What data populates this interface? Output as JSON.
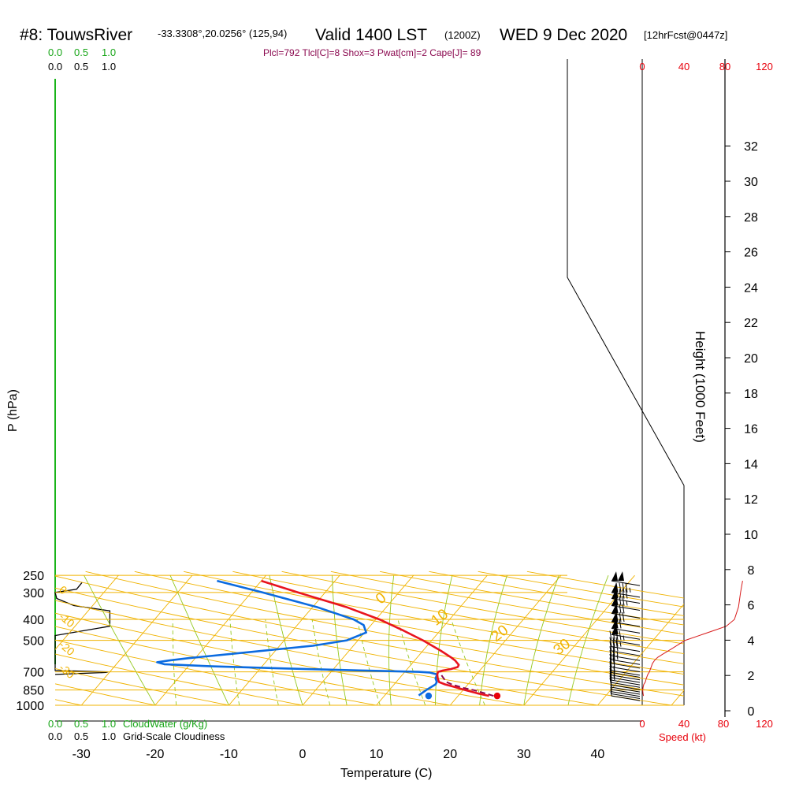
{
  "header": {
    "station": "#8: TouwsRiver",
    "coords": "-33.3308°,20.0256° (125,94)",
    "valid": "Valid 1400 LST",
    "utc": "(1200Z)",
    "date": "WED 9 Dec 2020",
    "forecast": "[12hrFcst@0447z]",
    "params": "Plcl=792 Tlcl[C]=8 Shox=3 Pwat[cm]=2 Cape[J]= 89"
  },
  "left_scales": {
    "top_green": [
      "0.0",
      "0.5",
      "1.0"
    ],
    "top_black": [
      "0.0",
      "0.5",
      "1.0"
    ],
    "bottom_green": [
      "0.0",
      "0.5",
      "1.0"
    ],
    "bottom_green_label": "CloudWater (g/Kg)",
    "bottom_black": [
      "0.0",
      "0.5",
      "1.0"
    ],
    "bottom_black_label": "Grid-Scale Cloudiness"
  },
  "wind_scale": {
    "top": [
      "0",
      "40",
      "80",
      "120"
    ],
    "bottom": [
      "0",
      "40",
      "80",
      "120"
    ],
    "label": "Speed (kt)"
  },
  "chart_data": {
    "type": "line",
    "subtype": "skew-t log-p sounding",
    "xlabel": "Temperature (C)",
    "ylabel": "P (hPa)",
    "y2label": "Height (1000 Feet)",
    "x_ticks": [
      -30,
      -20,
      -10,
      0,
      10,
      20,
      30,
      40
    ],
    "p_ticks": [
      250,
      300,
      400,
      500,
      700,
      850,
      1000
    ],
    "height_ticks": [
      0,
      2,
      4,
      6,
      8,
      10,
      12,
      14,
      16,
      18,
      20,
      22,
      24,
      26,
      28,
      30,
      32
    ],
    "xlim": [
      -33,
      36
    ],
    "plim": [
      1000,
      250
    ],
    "temperature": {
      "color": "#e8141e",
      "p": [
        905,
        880,
        850,
        820,
        800,
        780,
        750,
        720,
        700,
        690,
        680,
        665,
        650,
        620,
        600,
        560,
        500,
        450,
        400,
        350,
        300,
        265
      ],
      "t": [
        24.2,
        22.3,
        20.3,
        18.3,
        16.9,
        15.8,
        15.2,
        14.7,
        14.5,
        15.0,
        15.9,
        16.6,
        16.5,
        15.5,
        14.6,
        12.5,
        8.8,
        5.0,
        0.5,
        -5.5,
        -13.7,
        -20.0
      ]
    },
    "dewpoint": {
      "color": "#0b6be0",
      "p": [
        900,
        890,
        850,
        800,
        780,
        750,
        720,
        705,
        700,
        690,
        675,
        660,
        645,
        632,
        620,
        605,
        570,
        530,
        500,
        460,
        425,
        400,
        350,
        300,
        265
      ],
      "t": [
        14.6,
        14.7,
        15.0,
        15.6,
        15.5,
        14.9,
        14.7,
        13.4,
        11.8,
        4.2,
        -6.7,
        -16.8,
        -23.5,
        -24.7,
        -23.3,
        -20.9,
        -14.0,
        -5.5,
        -1.5,
        0.2,
        -1.0,
        -3.0,
        -9.5,
        -18.5,
        -26.0
      ]
    },
    "parcel": {
      "color": "#8b0a50",
      "p": [
        905,
        870,
        850,
        830,
        800,
        780,
        750,
        720,
        690
      ],
      "t": [
        24.8,
        22.7,
        21.4,
        19.7,
        17.8,
        16.8,
        16.0,
        15.2,
        14.7
      ]
    },
    "surface_points": [
      {
        "name": "surface temperature",
        "p": 905,
        "t": 25.3,
        "color": "#e8000b"
      },
      {
        "name": "surface dewpoint",
        "p": 905,
        "t": 16.0,
        "color": "#0b6be0"
      }
    ],
    "isotherm_labels": [
      0,
      10,
      20,
      30
    ],
    "dry_adiabat_labels": [
      0,
      -10,
      -20,
      -30
    ],
    "mixing_ratio_lines": [
      1,
      2,
      3,
      5,
      8,
      12,
      20
    ],
    "cloud_water_gkg": {
      "p": [
        250,
        1000
      ],
      "v": [
        0,
        0
      ]
    },
    "cloudiness": {
      "p": [
        270,
        290,
        300,
        320,
        345,
        365,
        400,
        430,
        475,
        690,
        700,
        705,
        720
      ],
      "v": [
        0.5,
        0.4,
        0.0,
        0.03,
        0.35,
        1.02,
        1.02,
        1.02,
        0.0,
        0.0,
        0.99,
        0.95,
        0.0
      ]
    },
    "wind_speed_kt": {
      "p": [
        265,
        300,
        350,
        400,
        430,
        450,
        500,
        550,
        580,
        600,
        620,
        640,
        660,
        680,
        700,
        720,
        750,
        780,
        800,
        820,
        850,
        880,
        905
      ],
      "v": [
        98,
        96,
        94,
        90,
        82,
        70,
        42,
        28,
        20,
        15,
        12,
        10,
        9,
        8,
        7,
        5.5,
        4,
        3,
        1.5,
        1,
        0.5,
        0.8,
        1.2
      ]
    },
    "wind_barbs": [
      {
        "p": 265,
        "spd": 100
      },
      {
        "p": 300,
        "spd": 95
      },
      {
        "p": 320,
        "spd": 90
      },
      {
        "p": 345,
        "spd": 85
      },
      {
        "p": 375,
        "spd": 80
      },
      {
        "p": 410,
        "spd": 80
      },
      {
        "p": 440,
        "spd": 70
      },
      {
        "p": 470,
        "spd": 55
      },
      {
        "p": 500,
        "spd": 45
      },
      {
        "p": 535,
        "spd": 35
      },
      {
        "p": 560,
        "spd": 30
      },
      {
        "p": 590,
        "spd": 25
      },
      {
        "p": 615,
        "spd": 25
      },
      {
        "p": 640,
        "spd": 20
      },
      {
        "p": 665,
        "spd": 20
      },
      {
        "p": 690,
        "spd": 15
      },
      {
        "p": 705,
        "spd": 15
      },
      {
        "p": 725,
        "spd": 15
      },
      {
        "p": 745,
        "spd": 15
      },
      {
        "p": 765,
        "spd": 15
      },
      {
        "p": 785,
        "spd": 10
      },
      {
        "p": 805,
        "spd": 10
      },
      {
        "p": 825,
        "spd": 10
      },
      {
        "p": 845,
        "spd": 5
      },
      {
        "p": 865,
        "spd": 5
      },
      {
        "p": 885,
        "spd": 5
      },
      {
        "p": 905,
        "spd": 5
      }
    ]
  }
}
